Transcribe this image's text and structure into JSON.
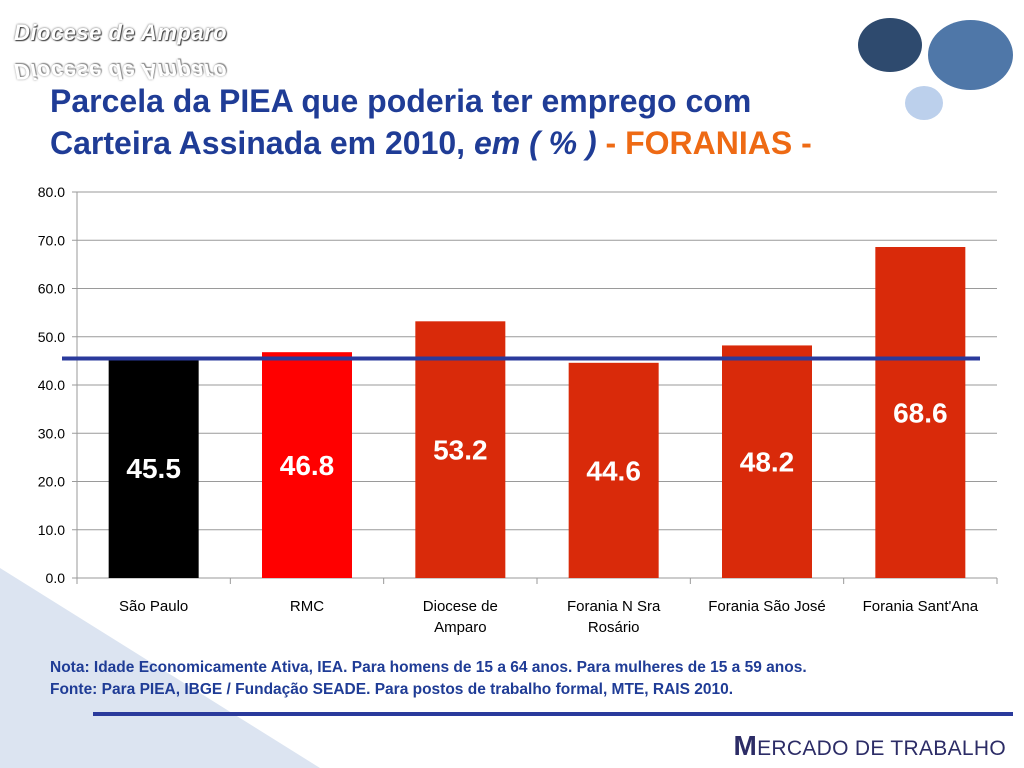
{
  "header": {
    "brand": "Diocese de Amparo",
    "title_line1": "Parcela da PIEA que poderia ter emprego com",
    "title_line2_main": "Carteira Assinada em 2010, ",
    "title_line2_italic": "em ( % )",
    "title_line2_accent": " - FORANIAS -"
  },
  "colors": {
    "title": "#1f3c96",
    "accent": "#ee6a14",
    "bar_default": "#d92a0a",
    "bar_sao_paulo": "#000000",
    "bar_rmc": "#ff0000",
    "reference_line": "#2a3a9c"
  },
  "chart_data": {
    "type": "bar",
    "categories": [
      "São Paulo",
      "RMC",
      "Diocese de Amparo",
      "Forania N Sra Rosário",
      "Forania São José",
      "Forania Sant'Ana"
    ],
    "category_lines": [
      [
        "São Paulo"
      ],
      [
        "RMC"
      ],
      [
        "Diocese de",
        "Amparo"
      ],
      [
        "Forania N Sra",
        "Rosário"
      ],
      [
        "Forania São José"
      ],
      [
        "Forania Sant'Ana"
      ]
    ],
    "values": [
      45.5,
      46.8,
      53.2,
      44.6,
      48.2,
      68.6
    ],
    "value_labels": [
      "45.5",
      "46.8",
      "53.2",
      "44.6",
      "48.2",
      "68.6"
    ],
    "bar_colors": [
      "#000000",
      "#ff0000",
      "#d92a0a",
      "#d92a0a",
      "#d92a0a",
      "#d92a0a"
    ],
    "ylim": [
      0,
      80
    ],
    "yticks": [
      "0.0",
      "10.0",
      "20.0",
      "30.0",
      "40.0",
      "50.0",
      "60.0",
      "70.0",
      "80.0"
    ],
    "reference_line": 45.5,
    "grid": true,
    "xlabel": "",
    "ylabel": ""
  },
  "notes": {
    "nota": "Nota: Idade Economicamente Ativa, IEA. Para homens de 15 a 64 anos. Para mulheres de 15 a 59 anos.",
    "fonte": "Fonte: Para PIEA, IBGE / Fundação SEADE. Para postos de trabalho formal, MTE, RAIS 2010."
  },
  "footer": {
    "initial": "M",
    "rest": "ERCADO DE TRABALHO"
  }
}
